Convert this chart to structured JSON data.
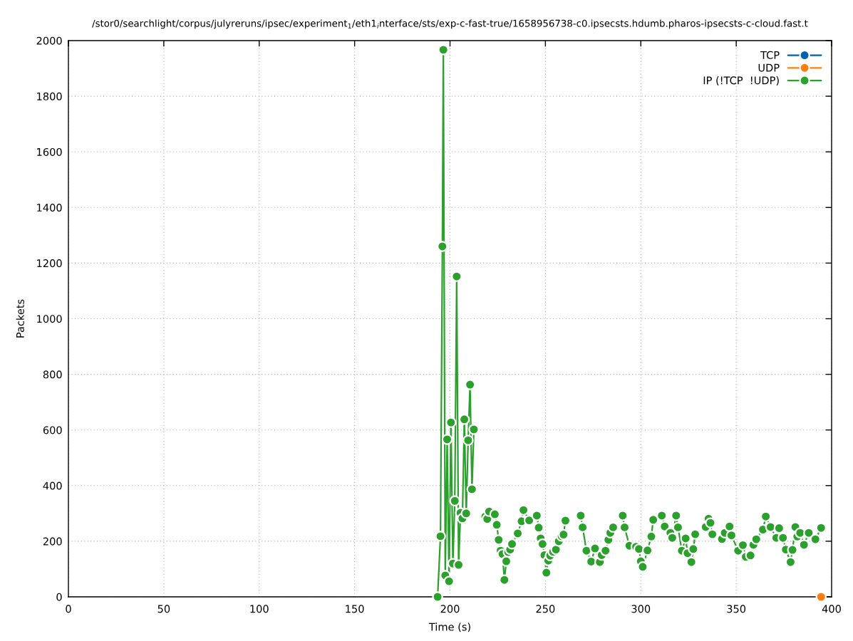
{
  "chart_data": {
    "type": "line",
    "title": "/stor0/searchlight/corpus/julyreruns/ipsec/experiment$_{1}$/eth1$_{i}$nterface/sts/exp-c-fast-true/1658956738-c0.ipsecsts.hdumb.pharos-ipsecsts-c-cloud.fast.t",
    "xlabel": "Time (s)",
    "ylabel": "Packets",
    "series": [
      {
        "name": "TCP",
        "color": "#0060ad"
      },
      {
        "name": "UDP",
        "color": "#ff7f0e",
        "x": [
          394.5
        ],
        "values": [
          0
        ]
      },
      {
        "name": "IP (!TCP  !UDP)",
        "color": "#2ca02c",
        "x": [
          193.5,
          195,
          196,
          196.5,
          197.5,
          198.5,
          199.5,
          200.5,
          201.5,
          202.5,
          203.5,
          204.5,
          205.5,
          206.5,
          207.5,
          208.5,
          209.5,
          210.5,
          211.5,
          212.5,
          215,
          218.5,
          219.5,
          220.5,
          223.5,
          224.5,
          225.5,
          226.5,
          227.5,
          228.5,
          229.5,
          230.5,
          231.5,
          232.5,
          235.5,
          237.5,
          238.5,
          241.5,
          243.5,
          245.5,
          246.5,
          247.5,
          248.5,
          249.5,
          250.5,
          251.5,
          252.5,
          254,
          255.5,
          257,
          258.5,
          259.5,
          260.5,
          264,
          268.5,
          269.5,
          271.5,
          274,
          276,
          278.5,
          279.5,
          281.5,
          283,
          284,
          285.5,
          288,
          290.5,
          291.5,
          294,
          297.5,
          299,
          300,
          301,
          303.5,
          305.5,
          306.5,
          311,
          312.5,
          315.5,
          316.5,
          318.5,
          319.5,
          321.5,
          323.5,
          324.5,
          326.5,
          327.5,
          328.5,
          331,
          334,
          335.5,
          336.5,
          337.5,
          340,
          342.5,
          344,
          346.5,
          347.5,
          351,
          353.5,
          355,
          357.5,
          359,
          360.5,
          364,
          365.5,
          368,
          371,
          372.5,
          374.5,
          376,
          378.5,
          379.5,
          381,
          382,
          383.5,
          385.5,
          388,
          391.5,
          394.5
        ],
        "values": [
          0,
          218,
          1260,
          1967,
          77,
          566,
          56,
          627,
          120,
          345,
          1152,
          115,
          302,
          282,
          638,
          300,
          563,
          763,
          387,
          602,
          null,
          289,
          280,
          307,
          297,
          259,
          205,
          166,
          154,
          61,
          128,
          161,
          170,
          190,
          228,
          272,
          312,
          275,
          null,
          292,
          249,
          210,
          190,
          150,
          87,
          130,
          148,
          162,
          170,
          200,
          218,
          224,
          274,
          null,
          292,
          250,
          166,
          127,
          174,
          125,
          150,
          166,
          205,
          230,
          250,
          null,
          292,
          250,
          184,
          180,
          172,
          128,
          108,
          167,
          217,
          277,
          292,
          253,
          230,
          212,
          292,
          250,
          166,
          210,
          157,
          125,
          172,
          225,
          null,
          251,
          281,
          266,
          225,
          null,
          208,
          230,
          253,
          221,
          166,
          186,
          144,
          149,
          187,
          207,
          242,
          289,
          251,
          212,
          247,
          212,
          170,
          125,
          169,
          251,
          217,
          230,
          187,
          230,
          207,
          248
        ]
      }
    ],
    "xlim": [
      0,
      400
    ],
    "ylim": [
      0,
      2000
    ],
    "xticks": [
      0,
      50,
      100,
      150,
      200,
      250,
      300,
      350,
      400
    ],
    "yticks": [
      0,
      200,
      400,
      600,
      800,
      1000,
      1200,
      1400,
      1600,
      1800,
      2000
    ],
    "grid": true,
    "legend": "top right",
    "marker": "circle",
    "line_style": "solid"
  }
}
